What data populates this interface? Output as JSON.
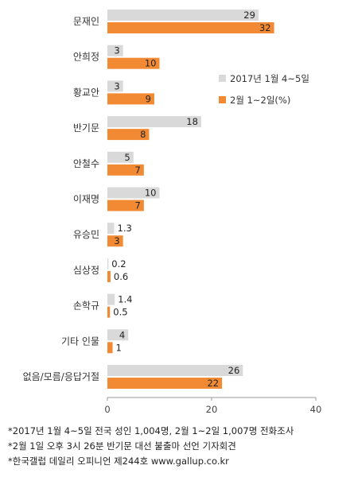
{
  "chart_data": {
    "type": "bar",
    "orientation": "horizontal",
    "categories": [
      "문재인",
      "안희정",
      "황교안",
      "반기문",
      "안철수",
      "이재명",
      "유승민",
      "심상정",
      "손학규",
      "기타 인물",
      "없음/모름/응답거절"
    ],
    "series": [
      {
        "name": "2017년 1월 4~5일",
        "values": [
          29,
          3,
          3,
          18,
          5,
          10,
          1.3,
          0.2,
          1.4,
          4,
          26
        ],
        "labels": [
          "29",
          "3",
          "3",
          "18",
          "5",
          "10",
          "1.3",
          "0.2",
          "1.4",
          "4",
          "26"
        ],
        "color": "#d9d9d9"
      },
      {
        "name": "2월 1~2일(%)",
        "values": [
          32,
          10,
          9,
          8,
          7,
          7,
          3,
          0.6,
          0.5,
          1,
          22
        ],
        "labels": [
          "32",
          "10",
          "9",
          "8",
          "7",
          "7",
          "3",
          "0.6",
          "0.5",
          "1",
          "22"
        ],
        "color": "#f28a33"
      }
    ],
    "xlim": [
      0,
      40
    ],
    "xticks": [
      "0",
      "20",
      "40"
    ],
    "legend_position": "right",
    "grid": false
  },
  "footnotes": [
    "*2017년 1월 4~5일 전국 성인 1,004명, 2월 1~2일 1,007명 전화조사",
    "*2월 1일 오후 3시 26분 반기문 대선 불출마 선언 기자회견",
    "*한국갤럽 데일리 오피니언 제244호 www.gallup.co.kr"
  ]
}
